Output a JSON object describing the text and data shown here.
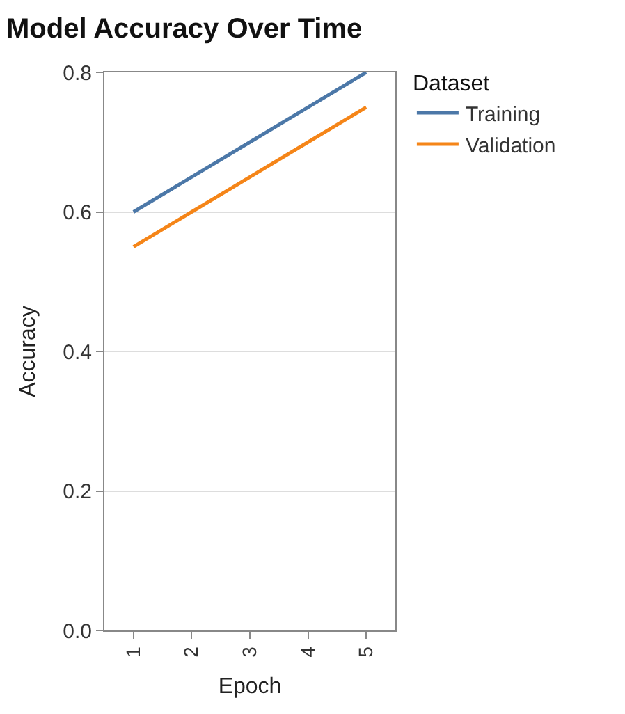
{
  "chart_data": {
    "type": "line",
    "title": "Model Accuracy Over Time",
    "xlabel": "Epoch",
    "ylabel": "Accuracy",
    "legend_title": "Dataset",
    "categories": [
      "1",
      "2",
      "3",
      "4",
      "5"
    ],
    "series": [
      {
        "name": "Training",
        "color": "#4c78a8",
        "values": [
          0.6,
          0.65,
          0.7,
          0.75,
          0.8
        ]
      },
      {
        "name": "Validation",
        "color": "#f58518",
        "values": [
          0.55,
          0.6,
          0.65,
          0.7,
          0.75
        ]
      }
    ],
    "ylim": [
      0,
      0.8
    ],
    "yticks": [
      {
        "value": 0,
        "label": "0.0"
      },
      0.2,
      0.4,
      0.6,
      0.8
    ],
    "grid": "y",
    "legend": "top right"
  }
}
